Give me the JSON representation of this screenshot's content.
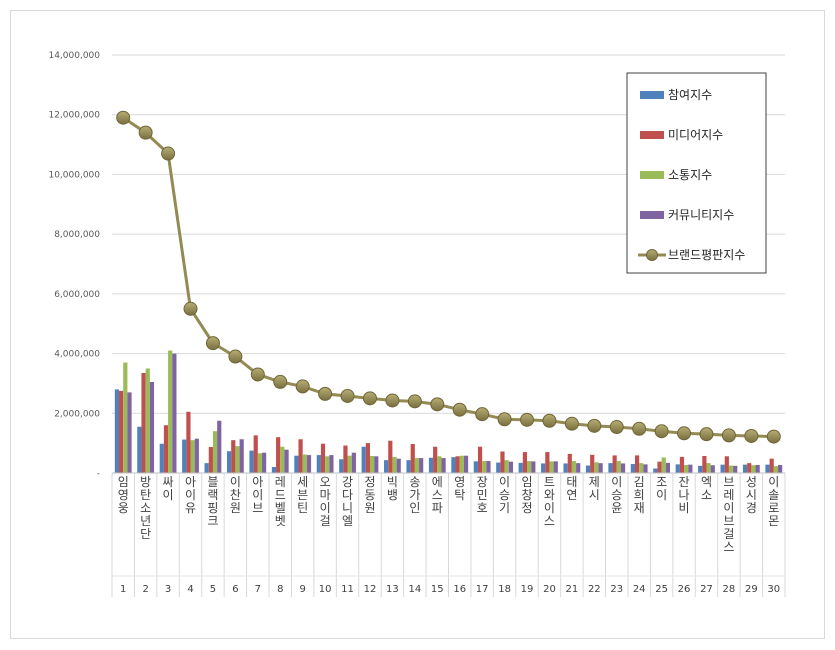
{
  "chart_data": {
    "type": "bar",
    "title": "",
    "xlabel": "",
    "ylabel": "",
    "ylim": [
      0,
      14000000
    ],
    "yticks": [
      "-",
      "2,000,000",
      "4,000,000",
      "6,000,000",
      "8,000,000",
      "10,000,000",
      "12,000,000",
      "14,000,000"
    ],
    "grid": true,
    "legend_position": "top-right",
    "categories": [
      "임영웅",
      "방탄소년단",
      "싸이",
      "아이유",
      "블랙핑크",
      "이찬원",
      "아이브",
      "레드벨벳",
      "세븐틴",
      "오마이걸",
      "강다니엘",
      "정동원",
      "빅뱅",
      "송가인",
      "에스파",
      "영탁",
      "장민호",
      "이승기",
      "임창정",
      "트와이스",
      "태연",
      "제시",
      "이승윤",
      "김희재",
      "조이",
      "잔나비",
      "엑소",
      "브레이브걸스",
      "성시경",
      "이솔로몬"
    ],
    "ranks": [
      "1",
      "2",
      "3",
      "4",
      "5",
      "6",
      "7",
      "8",
      "9",
      "10",
      "11",
      "12",
      "13",
      "14",
      "15",
      "16",
      "17",
      "18",
      "19",
      "20",
      "21",
      "22",
      "23",
      "24",
      "25",
      "26",
      "27",
      "28",
      "29",
      "30"
    ],
    "series": [
      {
        "name": "참여지수",
        "type": "bar",
        "color": "#4f81bd",
        "values": [
          2800000,
          1550000,
          980000,
          1120000,
          330000,
          730000,
          750000,
          200000,
          580000,
          600000,
          460000,
          880000,
          430000,
          430000,
          510000,
          530000,
          390000,
          350000,
          340000,
          320000,
          320000,
          250000,
          330000,
          300000,
          150000,
          290000,
          240000,
          280000,
          280000,
          280000
        ]
      },
      {
        "name": "미디어지수",
        "type": "bar",
        "color": "#c0504d",
        "values": [
          2750000,
          3350000,
          1600000,
          2050000,
          870000,
          1100000,
          1260000,
          1200000,
          1130000,
          980000,
          920000,
          1000000,
          1080000,
          970000,
          880000,
          560000,
          880000,
          720000,
          700000,
          700000,
          640000,
          610000,
          590000,
          590000,
          380000,
          540000,
          570000,
          560000,
          330000,
          480000
        ]
      },
      {
        "name": "소통지수",
        "type": "bar",
        "color": "#9bbb59",
        "values": [
          3700000,
          3500000,
          4100000,
          1100000,
          1400000,
          900000,
          660000,
          880000,
          620000,
          560000,
          580000,
          570000,
          540000,
          500000,
          560000,
          580000,
          400000,
          430000,
          400000,
          390000,
          400000,
          360000,
          400000,
          330000,
          520000,
          270000,
          330000,
          250000,
          260000,
          230000
        ]
      },
      {
        "name": "커뮤니티지수",
        "type": "bar",
        "color": "#8064a2",
        "values": [
          2700000,
          3050000,
          4000000,
          1150000,
          1750000,
          1130000,
          680000,
          780000,
          600000,
          600000,
          680000,
          560000,
          480000,
          500000,
          500000,
          580000,
          400000,
          380000,
          390000,
          390000,
          330000,
          330000,
          320000,
          290000,
          340000,
          280000,
          260000,
          240000,
          270000,
          270000
        ]
      },
      {
        "name": "브랜드평판지수",
        "type": "line",
        "color": "#948a54",
        "values": [
          11900000,
          11400000,
          10700000,
          5500000,
          4350000,
          3900000,
          3300000,
          3050000,
          2900000,
          2650000,
          2580000,
          2500000,
          2430000,
          2400000,
          2300000,
          2120000,
          1970000,
          1800000,
          1780000,
          1750000,
          1650000,
          1580000,
          1540000,
          1480000,
          1400000,
          1330000,
          1300000,
          1260000,
          1240000,
          1220000
        ]
      }
    ]
  }
}
